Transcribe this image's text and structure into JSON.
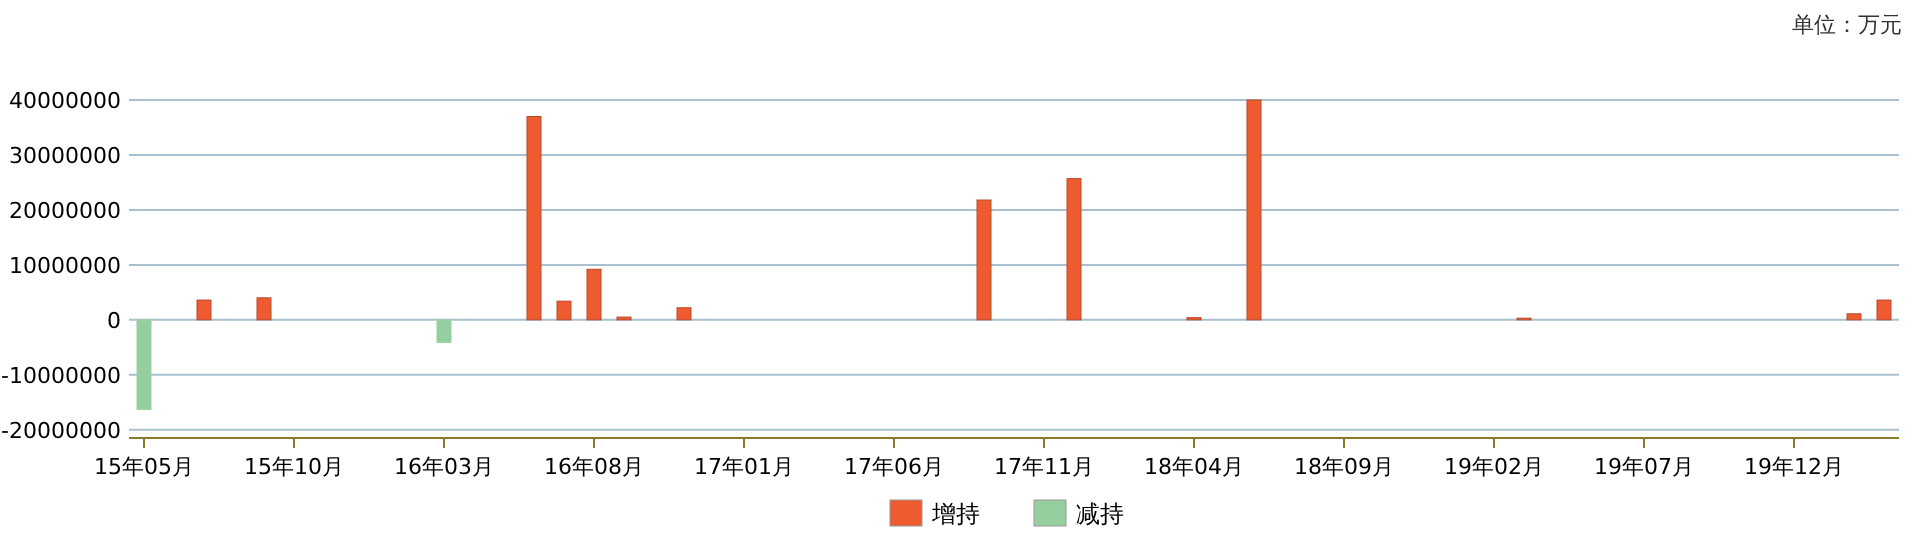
{
  "chart_data": {
    "type": "bar",
    "annotations": [
      "单位：万元"
    ],
    "categories": [
      "15年05月",
      null,
      null,
      null,
      null,
      "15年10月",
      null,
      null,
      null,
      null,
      "16年03月",
      null,
      null,
      null,
      null,
      "16年08月",
      null,
      null,
      null,
      null,
      "17年01月",
      null,
      null,
      null,
      null,
      "17年06月",
      null,
      null,
      null,
      null,
      "17年11月",
      null,
      null,
      null,
      null,
      "18年04月",
      null,
      null,
      null,
      null,
      "18年09月",
      null,
      null,
      null,
      null,
      "19年02月",
      null,
      null,
      null,
      null,
      "19年07月",
      null,
      null,
      null,
      null,
      "19年12月",
      null,
      null,
      null
    ],
    "series": [
      {
        "name": "增持",
        "color": "#ef5b30",
        "values": [
          null,
          null,
          3600000,
          null,
          4000000,
          null,
          null,
          null,
          null,
          null,
          null,
          null,
          null,
          37000000,
          3400000,
          9200000,
          500000,
          null,
          2200000,
          null,
          null,
          null,
          null,
          null,
          null,
          null,
          null,
          null,
          21800000,
          null,
          null,
          25700000,
          null,
          null,
          null,
          400000,
          null,
          40000000,
          null,
          null,
          null,
          null,
          null,
          null,
          null,
          null,
          300000,
          null,
          null,
          null,
          null,
          null,
          null,
          null,
          null,
          null,
          null,
          1100000,
          3600000
        ]
      },
      {
        "name": "减持",
        "color": "#96cf9f",
        "values": [
          -16300000,
          null,
          null,
          null,
          null,
          null,
          null,
          null,
          null,
          null,
          -4100000,
          null,
          null,
          null,
          null,
          null,
          null,
          null,
          null,
          null,
          null,
          null,
          null,
          null,
          null,
          null,
          null,
          null,
          null,
          null,
          null,
          null,
          null,
          null,
          null,
          null,
          null,
          null,
          null,
          null,
          null,
          null,
          null,
          null,
          null,
          null,
          null,
          null,
          null,
          null,
          null,
          null,
          null,
          null,
          null,
          null,
          null,
          null,
          null
        ]
      }
    ],
    "ylim": [
      -21500000,
      40000000
    ],
    "yticks": [
      -20000000,
      -10000000,
      0,
      10000000,
      20000000,
      30000000,
      40000000
    ],
    "grid": "y",
    "legend": "bottom"
  }
}
